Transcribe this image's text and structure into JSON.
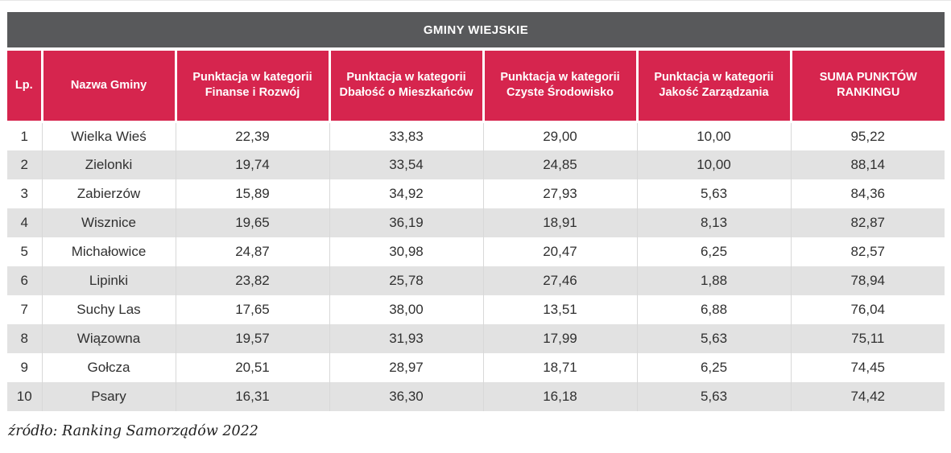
{
  "page": {
    "title_bar": "GMINY WIEJSKIE",
    "source_note": "źródło: Ranking Samorządów 2022"
  },
  "colors": {
    "title_bar_bg": "#58595b",
    "header_bg": "#d6254e",
    "header_text": "#ffffff",
    "row_alt_bg": "#e2e2e2",
    "body_text": "#303030"
  },
  "chart_data": {
    "type": "table",
    "title": "GMINY WIEJSKIE",
    "columns": [
      {
        "id": "lp",
        "lines": [
          "Lp."
        ]
      },
      {
        "id": "name",
        "lines": [
          "Nazwa Gminy"
        ]
      },
      {
        "id": "finanse",
        "lines": [
          "Punktacja w kategorii",
          "Finanse i Rozwój"
        ]
      },
      {
        "id": "dbalosc",
        "lines": [
          "Punktacja w kategorii",
          "Dbałość o Mieszkańców"
        ]
      },
      {
        "id": "czyste",
        "lines": [
          "Punktacja w kategorii",
          "Czyste Środowisko"
        ]
      },
      {
        "id": "jakosc",
        "lines": [
          "Punktacja w kategorii",
          "Jakość Zarządzania"
        ]
      },
      {
        "id": "suma",
        "lines": [
          "SUMA PUNKTÓW",
          "RANKINGU"
        ]
      }
    ],
    "rows": [
      [
        "1",
        "Wielka Wieś",
        "22,39",
        "33,83",
        "29,00",
        "10,00",
        "95,22"
      ],
      [
        "2",
        "Zielonki",
        "19,74",
        "33,54",
        "24,85",
        "10,00",
        "88,14"
      ],
      [
        "3",
        "Zabierzów",
        "15,89",
        "34,92",
        "27,93",
        "5,63",
        "84,36"
      ],
      [
        "4",
        "Wisznice",
        "19,65",
        "36,19",
        "18,91",
        "8,13",
        "82,87"
      ],
      [
        "5",
        "Michałowice",
        "24,87",
        "30,98",
        "20,47",
        "6,25",
        "82,57"
      ],
      [
        "6",
        "Lipinki",
        "23,82",
        "25,78",
        "27,46",
        "1,88",
        "78,94"
      ],
      [
        "7",
        "Suchy Las",
        "17,65",
        "38,00",
        "13,51",
        "6,88",
        "76,04"
      ],
      [
        "8",
        "Wiązowna",
        "19,57",
        "31,93",
        "17,99",
        "5,63",
        "75,11"
      ],
      [
        "9",
        "Gołcza",
        "20,51",
        "28,97",
        "18,71",
        "6,25",
        "74,45"
      ],
      [
        "10",
        "Psary",
        "16,31",
        "36,30",
        "16,18",
        "5,63",
        "74,42"
      ]
    ],
    "source": "źródło: Ranking Samorządów 2022",
    "layout": {
      "grid": "alternating-row-stripes",
      "legend": "none"
    }
  }
}
